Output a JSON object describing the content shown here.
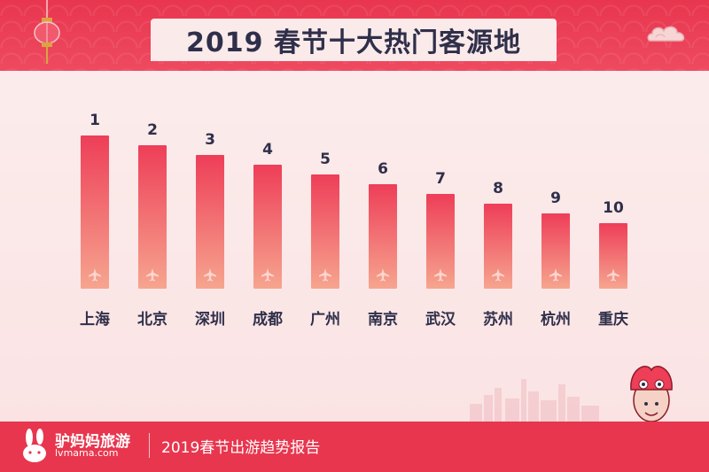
{
  "header": {
    "title": "2019 春节十大热门客源地"
  },
  "footer": {
    "brand_name": "驴妈妈旅游",
    "brand_url": "lvmama.com",
    "caption": "2019春节出游趋势报告"
  },
  "icons": {
    "bar_icon": "airplane-icon",
    "lantern": "lantern-icon",
    "cloud": "cloud-icon",
    "logo": "rabbit-logo-icon",
    "mascot": "lion-dance-mascot-icon"
  },
  "colors": {
    "header": "#e8364e",
    "bar_top": "#ee3e58",
    "bar_bottom": "#f6a58f",
    "rank_text": "#2f2f4a",
    "label_text": "#2f2f4a"
  },
  "chart_data": {
    "type": "bar",
    "title": "2019 春节十大热门客源地",
    "categories": [
      "上海",
      "北京",
      "深圳",
      "成都",
      "广州",
      "南京",
      "武汉",
      "苏州",
      "杭州",
      "重庆"
    ],
    "ranks": [
      1,
      2,
      3,
      4,
      5,
      6,
      7,
      8,
      9,
      10
    ],
    "values": [
      10,
      9,
      8,
      7,
      6,
      5,
      4,
      3,
      2,
      1
    ],
    "grid": false,
    "legend": "none"
  }
}
